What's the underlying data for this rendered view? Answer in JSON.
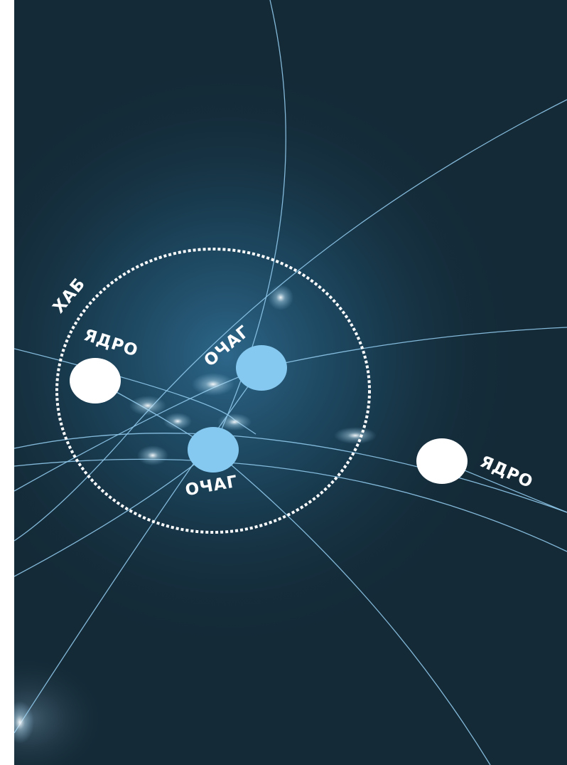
{
  "labels": {
    "hub": "ХАБ",
    "core_left": "ЯДРО",
    "core_right": "ЯДРО",
    "focus_top": "ОЧАГ",
    "focus_bottom": "ОЧАГ"
  },
  "colors": {
    "background": "#142a37",
    "glow": "#2a5f80",
    "line": "#8fc8ea",
    "focus_node": "#86c9f0",
    "core_node": "#ffffff",
    "hub_ring": "#ffffff",
    "label": "#ffffff"
  }
}
